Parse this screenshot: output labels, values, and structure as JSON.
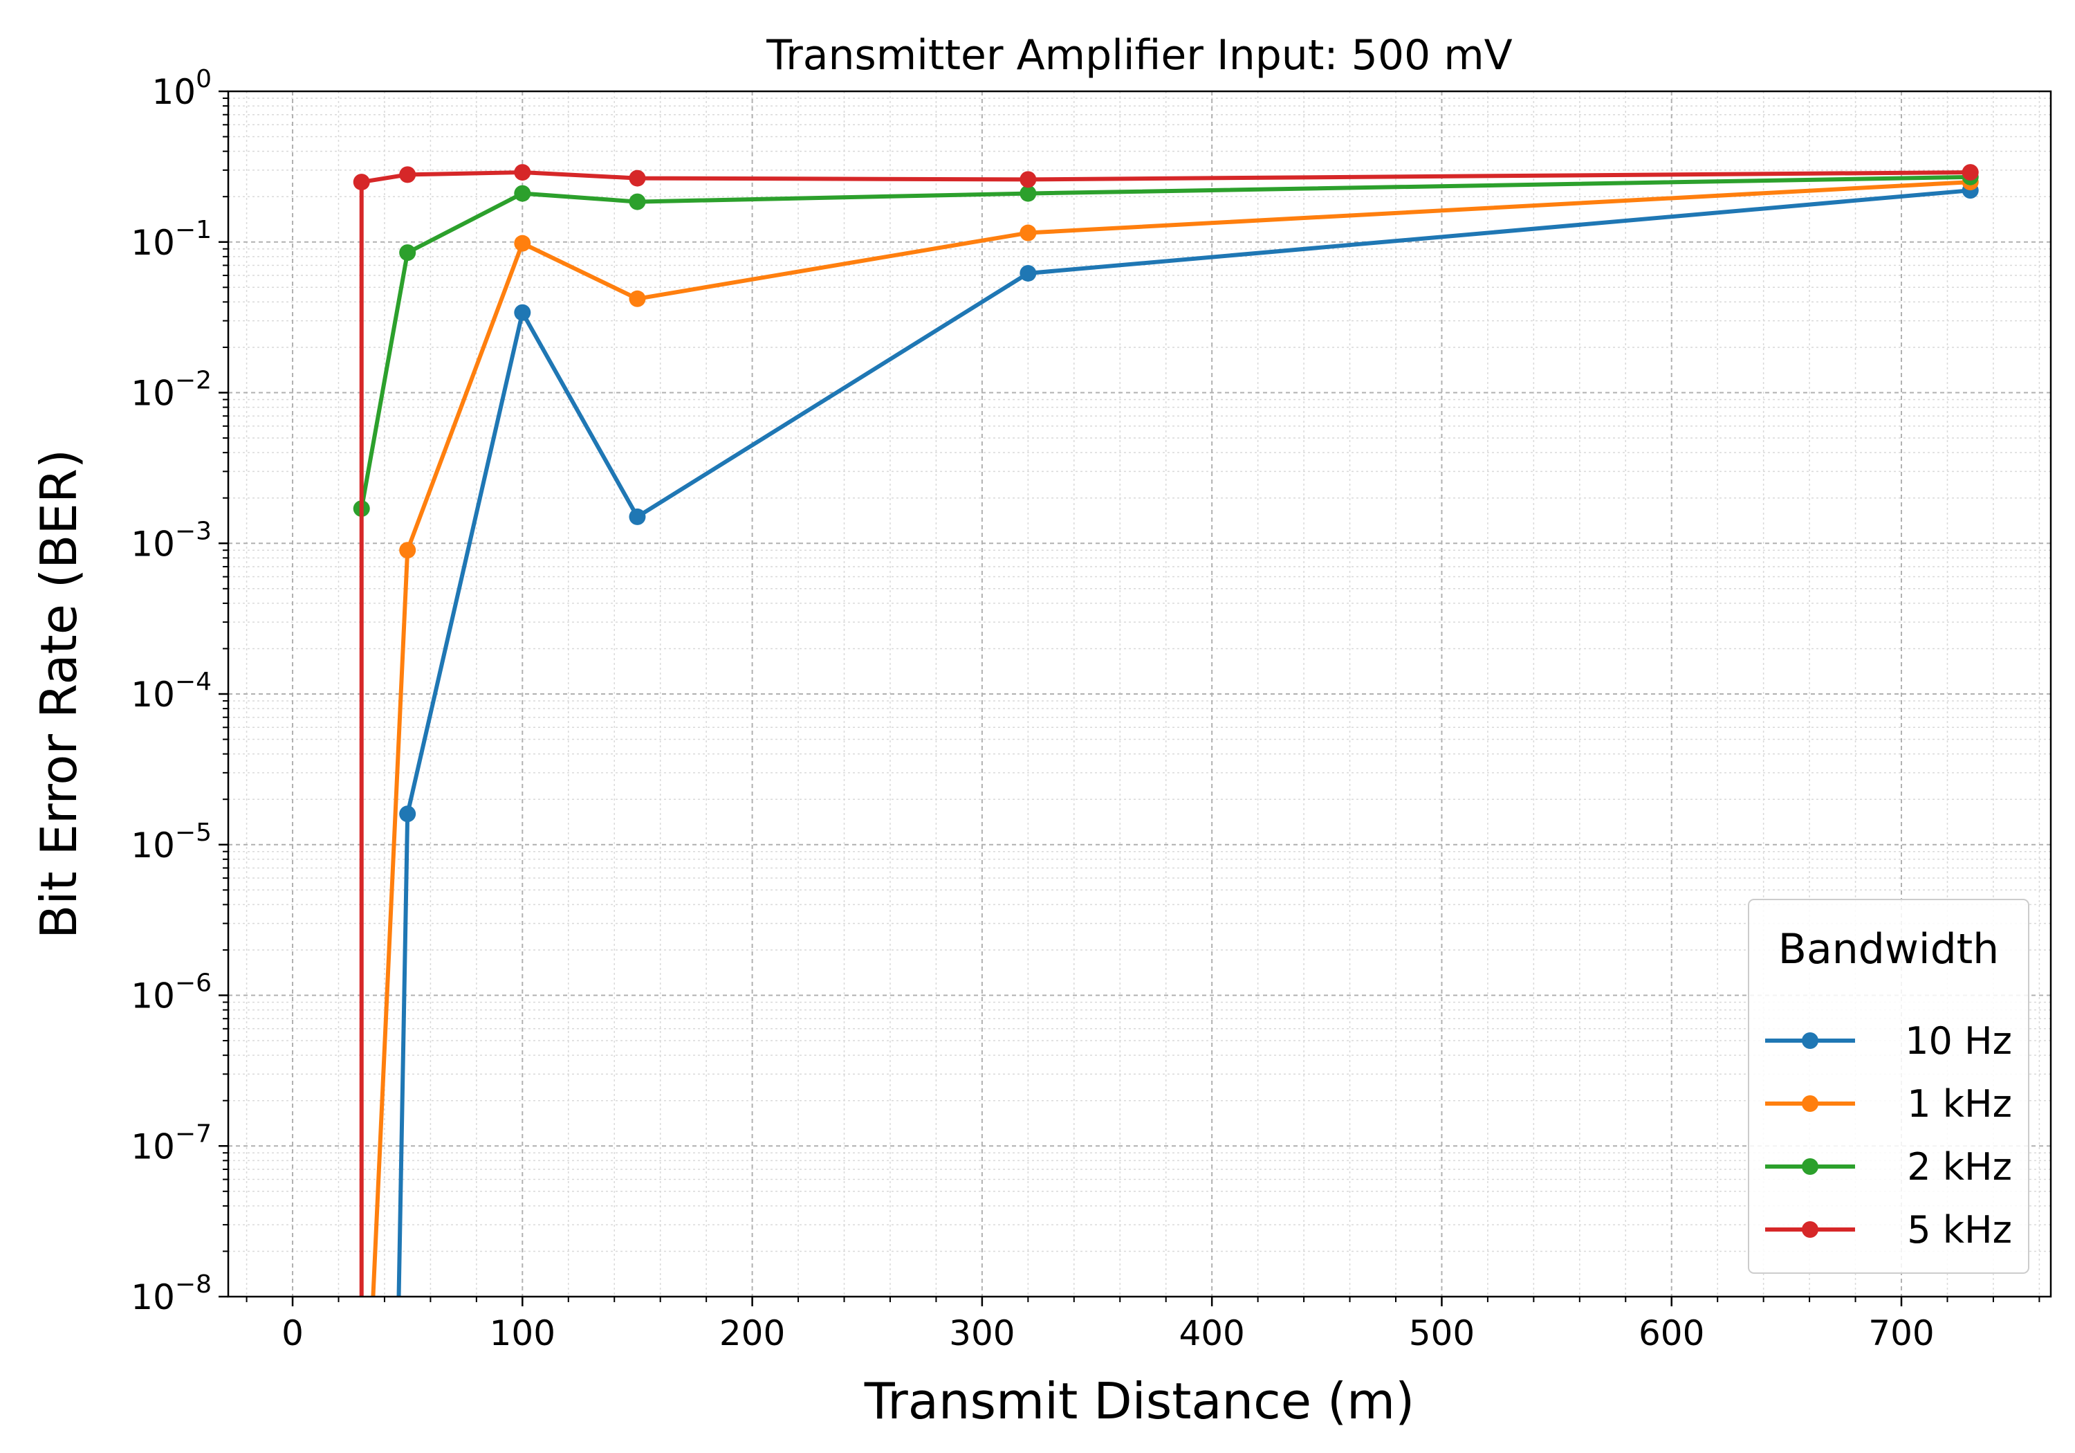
{
  "chart_data": {
    "type": "line",
    "title": "Transmitter Amplifier Input: 500 mV",
    "xlabel": "Transmit Distance (m)",
    "ylabel": "Bit Error Rate (BER)",
    "xlim": [
      -28,
      765
    ],
    "ylim": [
      1e-08,
      1
    ],
    "yscale": "log",
    "grid": true,
    "x_ticks": [
      0,
      100,
      200,
      300,
      400,
      500,
      600,
      700
    ],
    "y_tick_exponents": [
      0,
      -1,
      -2,
      -3,
      -4,
      -5,
      -6,
      -7,
      -8
    ],
    "legend": {
      "title": "Bandwidth",
      "placement": "lower right"
    },
    "series": [
      {
        "name": "10 Hz",
        "color": "#1f77b4",
        "x": [
          45,
          50,
          100,
          150,
          320,
          730
        ],
        "y": [
          1e-09,
          1.6e-05,
          0.034,
          0.0015,
          0.062,
          0.22
        ],
        "markers": [
          false,
          true,
          true,
          true,
          true,
          true
        ]
      },
      {
        "name": "1 kHz",
        "color": "#ff7f0e",
        "x": [
          32,
          50,
          100,
          150,
          320,
          730
        ],
        "y": [
          1e-09,
          0.0009,
          0.098,
          0.042,
          0.115,
          0.25
        ],
        "markers": [
          false,
          true,
          true,
          true,
          true,
          true
        ]
      },
      {
        "name": "2 kHz",
        "color": "#2ca02c",
        "x": [
          30,
          50,
          100,
          150,
          320,
          730
        ],
        "y": [
          0.0017,
          0.085,
          0.21,
          0.185,
          0.21,
          0.27
        ],
        "markers": [
          true,
          true,
          true,
          true,
          true,
          true
        ]
      },
      {
        "name": "5 kHz",
        "color": "#d62728",
        "x": [
          30,
          30,
          50,
          100,
          150,
          320,
          730
        ],
        "y": [
          1e-09,
          0.25,
          0.28,
          0.29,
          0.265,
          0.26,
          0.29
        ],
        "markers": [
          false,
          true,
          true,
          true,
          true,
          true,
          true
        ]
      }
    ]
  }
}
